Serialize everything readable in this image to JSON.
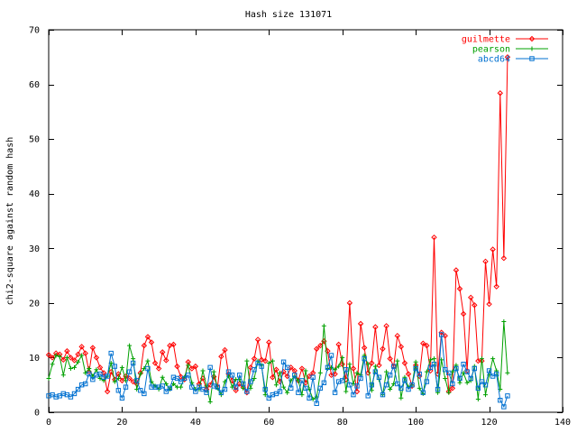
{
  "chart_data": {
    "type": "line",
    "title": "Hash size 131071",
    "xlabel": "",
    "ylabel": "chi2-square against random hash",
    "xlim": [
      0,
      140
    ],
    "ylim": [
      0,
      70
    ],
    "xticks": [
      0,
      20,
      40,
      60,
      80,
      100,
      120,
      140
    ],
    "yticks": [
      0,
      10,
      20,
      30,
      40,
      50,
      60,
      70
    ],
    "grid": false,
    "legend_position": "top-right",
    "series": [
      {
        "name": "guilmette",
        "color": "#ff0000",
        "marker": "diamond",
        "values": [
          10.5,
          10.0,
          10.8,
          10.6,
          9.6,
          11.2,
          10.0,
          9.5,
          10.6,
          12.0,
          10.8,
          7.4,
          11.8,
          10.0,
          8.2,
          7.2,
          3.8,
          7.4,
          6.0,
          7.0,
          5.8,
          6.6,
          6.2,
          5.6,
          5.2,
          7.2,
          12.2,
          13.8,
          12.8,
          9.0,
          8.0,
          11.0,
          9.5,
          12.2,
          12.4,
          8.4,
          6.5,
          6.0,
          9.2,
          8.0,
          8.4,
          5.2,
          6.2,
          4.2,
          5.0,
          6.5,
          4.6,
          10.2,
          11.4,
          7.0,
          5.8,
          4.0,
          5.2,
          4.6,
          3.6,
          8.2,
          9.8,
          13.3,
          9.6,
          9.4,
          12.8,
          6.4,
          7.8,
          5.6,
          7.4,
          6.6,
          8.2,
          7.6,
          5.8,
          8.0,
          5.4,
          6.6,
          7.2,
          11.6,
          12.2,
          13.0,
          11.2,
          6.8,
          7.0,
          12.4,
          8.8,
          6.0,
          20.0,
          8.0,
          3.8,
          16.2,
          11.8,
          7.2,
          9.0,
          15.6,
          8.6,
          11.6,
          15.8,
          9.8,
          8.4,
          14.0,
          12.0,
          9.0,
          7.0,
          4.8,
          8.6,
          6.6,
          12.6,
          12.2,
          7.6,
          32.0,
          7.0,
          14.6,
          14.0,
          3.8,
          4.4,
          26.0,
          22.6,
          18.0,
          7.6,
          21.0,
          19.6,
          9.4,
          9.4,
          27.6,
          19.8,
          29.8,
          23.0,
          58.4,
          28.2,
          65.0
        ]
      },
      {
        "name": "pearson",
        "color": "#00a000",
        "marker": "plus",
        "values": [
          6.2,
          8.8,
          10.4,
          10.2,
          6.8,
          10.0,
          8.0,
          8.2,
          9.2,
          10.4,
          7.2,
          8.0,
          6.6,
          7.8,
          6.2,
          5.8,
          6.6,
          9.0,
          5.6,
          6.2,
          8.2,
          5.8,
          12.2,
          9.8,
          4.2,
          7.0,
          8.0,
          9.4,
          5.6,
          4.8,
          4.2,
          6.4,
          5.2,
          4.2,
          5.2,
          4.6,
          4.6,
          6.4,
          8.6,
          5.4,
          4.2,
          4.2,
          7.6,
          4.8,
          1.9,
          7.4,
          4.4,
          3.2,
          5.6,
          6.6,
          4.6,
          6.0,
          6.0,
          4.4,
          9.4,
          4.4,
          6.2,
          9.4,
          8.6,
          3.2,
          9.0,
          9.4,
          5.0,
          7.2,
          4.6,
          3.6,
          5.8,
          6.6,
          5.8,
          3.2,
          7.6,
          4.2,
          2.4,
          2.8,
          7.2,
          15.8,
          8.0,
          8.2,
          7.8,
          8.4,
          10.0,
          3.8,
          8.8,
          5.2,
          7.2,
          6.8,
          10.4,
          8.8,
          4.0,
          8.4,
          6.0,
          3.2,
          7.4,
          4.2,
          5.2,
          9.4,
          2.6,
          6.4,
          4.6,
          5.0,
          9.2,
          4.4,
          3.4,
          7.4,
          9.6,
          9.8,
          3.6,
          9.6,
          6.2,
          3.6,
          7.4,
          8.6,
          5.4,
          7.2,
          5.4,
          5.8,
          8.4,
          2.4,
          9.8,
          3.2,
          6.8,
          9.8,
          7.6,
          4.2,
          16.6,
          7.2
        ]
      },
      {
        "name": "abcd64",
        "color": "#0070d0",
        "marker": "square",
        "values": [
          3.0,
          3.2,
          2.8,
          3.0,
          3.4,
          3.2,
          2.8,
          3.4,
          4.2,
          5.0,
          5.2,
          7.0,
          6.0,
          6.8,
          7.0,
          6.4,
          6.6,
          10.8,
          8.4,
          4.0,
          2.6,
          4.6,
          7.4,
          9.0,
          5.8,
          4.0,
          3.4,
          8.0,
          4.6,
          4.6,
          4.6,
          4.8,
          3.8,
          4.4,
          6.4,
          6.2,
          5.6,
          6.2,
          6.8,
          4.6,
          3.8,
          4.6,
          4.2,
          3.6,
          8.2,
          4.8,
          4.6,
          3.6,
          4.2,
          7.4,
          6.8,
          4.6,
          6.8,
          5.2,
          3.8,
          5.6,
          7.8,
          9.0,
          8.4,
          4.2,
          2.6,
          3.2,
          3.4,
          3.8,
          9.2,
          8.2,
          4.4,
          6.8,
          3.6,
          5.8,
          4.4,
          2.6,
          6.4,
          1.6,
          4.4,
          5.4,
          8.2,
          10.4,
          3.6,
          5.6,
          5.8,
          7.8,
          5.0,
          3.2,
          4.8,
          6.2,
          9.8,
          3.0,
          5.0,
          7.4,
          6.4,
          3.2,
          5.0,
          6.8,
          8.4,
          5.2,
          4.4,
          5.8,
          4.2,
          5.0,
          8.0,
          7.0,
          3.6,
          5.6,
          8.2,
          8.8,
          4.2,
          14.2,
          7.8,
          7.2,
          5.2,
          8.0,
          6.2,
          8.8,
          7.4,
          6.2,
          8.0,
          4.4,
          5.6,
          5.0,
          7.6,
          6.6,
          7.0,
          2.2,
          1.0,
          3.0
        ]
      }
    ]
  }
}
